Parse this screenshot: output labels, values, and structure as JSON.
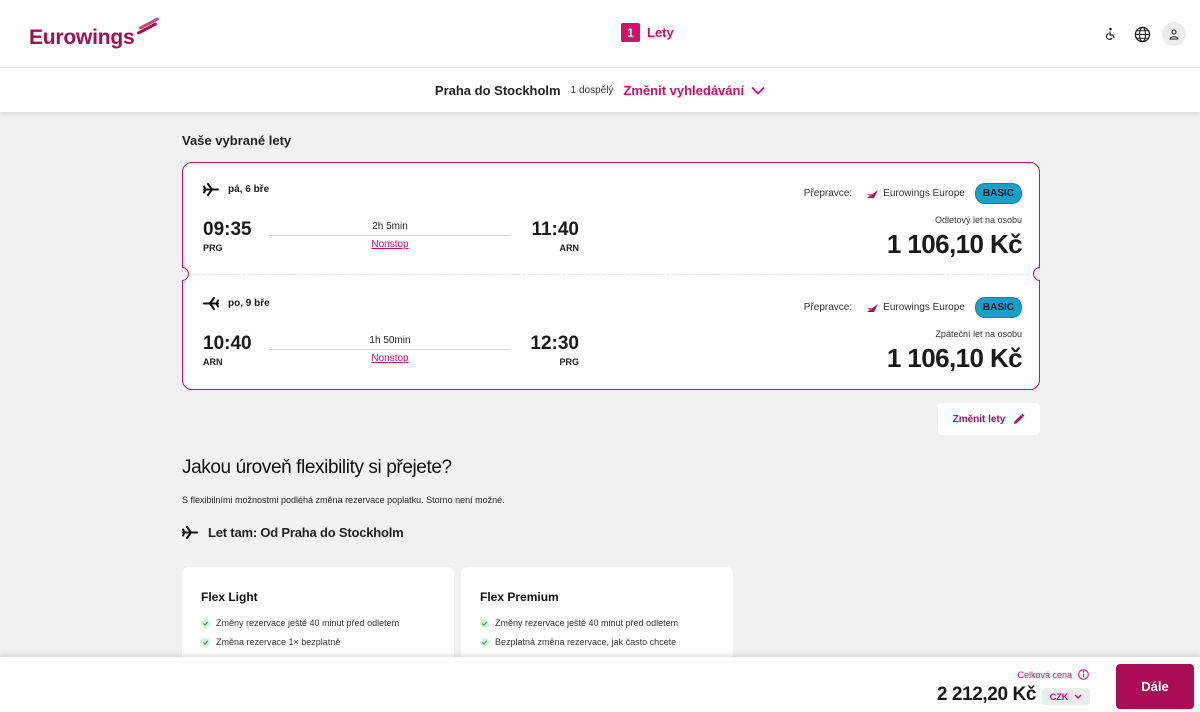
{
  "header": {
    "logo_text": "Eurowings",
    "step_number": "1",
    "step_label": "Lety"
  },
  "search": {
    "route": "Praha do Stockholm",
    "passengers": "1 dospělý",
    "change_label": "Změnit vyhledávání"
  },
  "selected": {
    "title": "Vaše vybrané lety",
    "outbound": {
      "date": "pá, 6 bře",
      "dep_time": "09:35",
      "dep_code": "PRG",
      "duration": "2h 5min",
      "stops": "Nonstop",
      "arr_time": "11:40",
      "arr_code": "ARN",
      "carrier_label": "Přepravce:",
      "carrier_name": "Eurowings Europe",
      "fare": "BASIC",
      "price_label": "Odletový let na osobu",
      "price": "1 106,10 Kč"
    },
    "inbound": {
      "date": "po, 9 bře",
      "dep_time": "10:40",
      "dep_code": "ARN",
      "duration": "1h 50min",
      "stops": "Nonstop",
      "arr_time": "12:30",
      "arr_code": "PRG",
      "carrier_label": "Přepravce:",
      "carrier_name": "Eurowings Europe",
      "fare": "BASIC",
      "price_label": "Zpáteční let na osobu",
      "price": "1 106,10 Kč"
    },
    "change_flights_label": "Změnit lety"
  },
  "flex": {
    "title": "Jakou úroveň flexibility si přejete?",
    "subtitle": "S flexibilními možnostmi podléhá změna rezervace poplatku. Storno není možné.",
    "leg_label": "Let tam: Od Praha do Stockholm",
    "options": [
      {
        "title": "Flex Light",
        "features": [
          "Změny rezervace ještě 40 minut před odletem",
          "Změna rezervace 1× bezplatně"
        ]
      },
      {
        "title": "Flex Premium",
        "features": [
          "Změny rezervace ještě 40 minut před odletem",
          "Bezplatná změna rezervace, jak často chcete"
        ]
      }
    ]
  },
  "footer": {
    "total_label": "Celková cena",
    "total_amount": "2 212,20 Kč",
    "currency": "CZK",
    "next_label": "Dále"
  },
  "colors": {
    "brand": "#a4104d",
    "accent": "#c8106a",
    "fare_badge": "#1aa0c8",
    "page_bg": "#f1f1f1"
  },
  "icons": {
    "accessibility": "accessibility-icon",
    "language": "globe-icon",
    "account": "user-icon",
    "outbound": "plane-departure-icon",
    "inbound": "plane-return-icon",
    "edit": "pencil-icon",
    "check": "check-icon",
    "info": "info-icon"
  }
}
